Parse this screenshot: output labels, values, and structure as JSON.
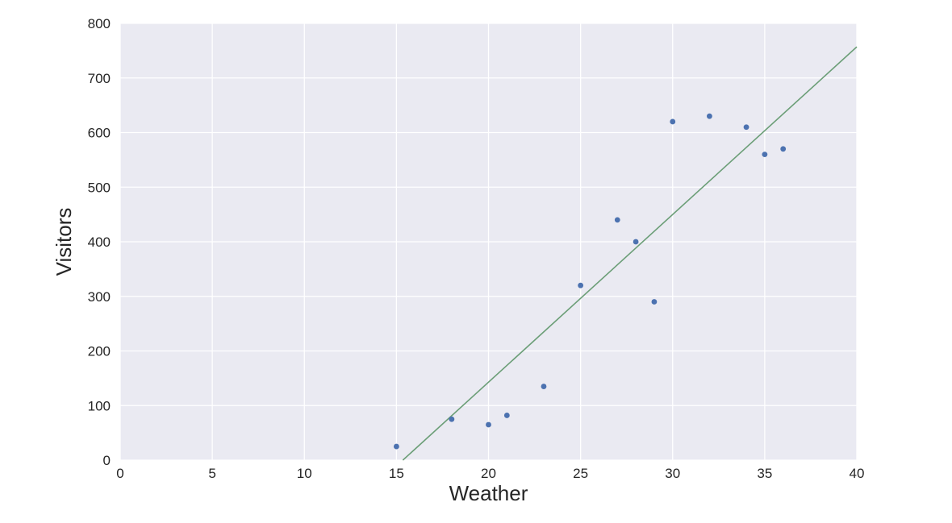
{
  "chart_data": {
    "type": "scatter",
    "title": "",
    "xlabel": "Weather",
    "ylabel": "Visitors",
    "xlim": [
      0,
      40
    ],
    "ylim": [
      0,
      800
    ],
    "x_ticks": [
      0,
      5,
      10,
      15,
      20,
      25,
      30,
      35,
      40
    ],
    "y_ticks": [
      0,
      100,
      200,
      300,
      400,
      500,
      600,
      700,
      800
    ],
    "grid": true,
    "legend": "none",
    "points": [
      [
        15,
        25
      ],
      [
        18,
        75
      ],
      [
        20,
        65
      ],
      [
        21,
        82
      ],
      [
        23,
        135
      ],
      [
        25,
        320
      ],
      [
        27,
        440
      ],
      [
        28,
        400
      ],
      [
        29,
        290
      ],
      [
        30,
        620
      ],
      [
        32,
        630
      ],
      [
        34,
        610
      ],
      [
        35,
        560
      ],
      [
        36,
        570
      ]
    ],
    "regression_line": {
      "x1": 15.35,
      "y1": 0,
      "x2": 40,
      "y2": 757
    },
    "colors": {
      "point": "#4c72b0",
      "line": "#6b9e77",
      "plot_background": "#eaeaf2",
      "grid": "#ffffff",
      "text": "#262626"
    }
  }
}
